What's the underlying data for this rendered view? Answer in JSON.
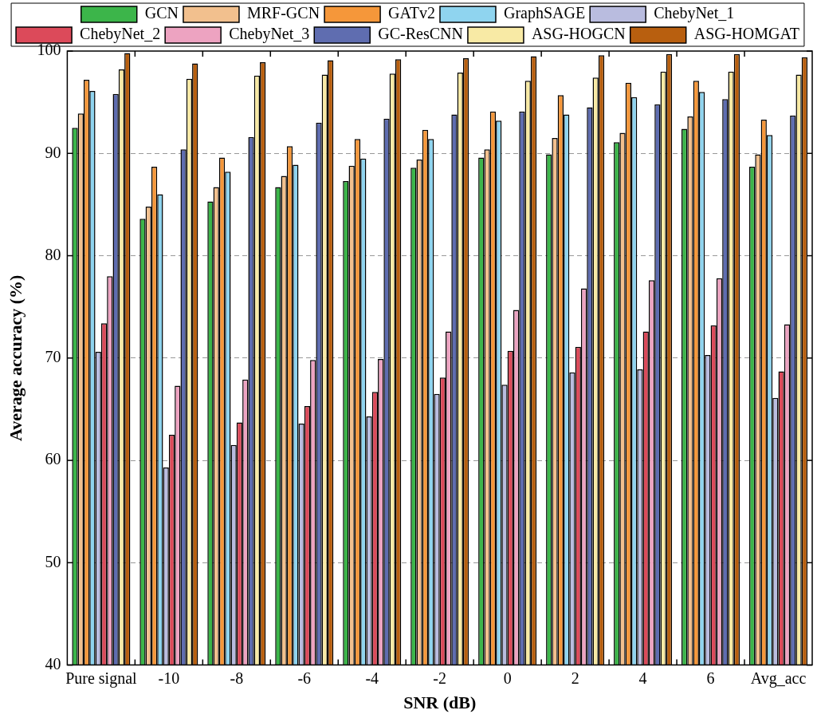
{
  "chart_data": {
    "type": "bar",
    "xlabel": "SNR (dB)",
    "ylabel": "Average accuracy (%)",
    "categories": [
      "Pure signal",
      "-10",
      "-8",
      "-6",
      "-4",
      "-2",
      "0",
      "2",
      "4",
      "6",
      "Avg_acc"
    ],
    "ylim": [
      40,
      100
    ],
    "yticks": [
      40,
      50,
      60,
      70,
      80,
      90,
      100
    ],
    "grid": "y",
    "legend": "top",
    "series": [
      {
        "name": "GCN",
        "color": "#3cb54a",
        "values": [
          92.5,
          83.6,
          85.3,
          86.7,
          87.3,
          88.6,
          89.6,
          89.9,
          91.1,
          92.4,
          88.7
        ]
      },
      {
        "name": "MRF-GCN",
        "color": "#f2c08e",
        "values": [
          93.9,
          84.8,
          86.7,
          87.8,
          88.8,
          89.4,
          90.4,
          91.5,
          92.0,
          93.6,
          89.9
        ]
      },
      {
        "name": "GATv2",
        "color": "#f5973a",
        "values": [
          97.2,
          88.7,
          89.6,
          90.7,
          91.4,
          92.3,
          94.1,
          95.7,
          96.9,
          97.1,
          93.3
        ]
      },
      {
        "name": "GraphSAGE",
        "color": "#8fd4ef",
        "values": [
          96.1,
          86.0,
          88.2,
          88.9,
          89.5,
          91.4,
          93.2,
          93.8,
          95.5,
          96.0,
          91.8
        ]
      },
      {
        "name": "ChebyNet_1",
        "color": "#b9bcdf",
        "values": [
          70.6,
          59.3,
          61.5,
          63.6,
          64.3,
          66.5,
          67.4,
          68.6,
          68.9,
          70.3,
          66.1
        ]
      },
      {
        "name": "ChebyNet_2",
        "color": "#dc4a5a",
        "values": [
          73.4,
          62.5,
          63.7,
          65.3,
          66.7,
          68.1,
          70.7,
          71.1,
          72.6,
          73.2,
          68.7
        ]
      },
      {
        "name": "ChebyNet_3",
        "color": "#eda3c1",
        "values": [
          78.0,
          67.3,
          67.9,
          69.8,
          69.9,
          72.6,
          74.7,
          76.8,
          77.6,
          77.8,
          73.3
        ]
      },
      {
        "name": "GC-ResCNN",
        "color": "#5f6db0",
        "values": [
          95.8,
          90.4,
          91.6,
          93.0,
          93.4,
          93.8,
          94.1,
          94.5,
          94.8,
          95.3,
          93.7
        ]
      },
      {
        "name": "ASG-HOGCN",
        "color": "#f8eaa5",
        "values": [
          98.2,
          97.3,
          97.6,
          97.7,
          97.8,
          97.9,
          97.1,
          97.4,
          98.0,
          98.0,
          97.7
        ]
      },
      {
        "name": "ASG-HOMGAT",
        "color": "#b85f0f",
        "values": [
          99.8,
          98.8,
          98.9,
          99.1,
          99.2,
          99.3,
          99.5,
          99.6,
          99.7,
          99.7,
          99.4
        ]
      }
    ]
  }
}
